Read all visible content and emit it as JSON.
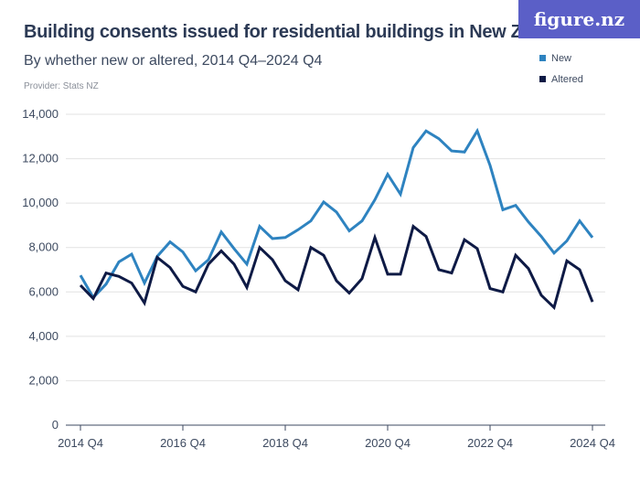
{
  "header": {
    "title": "Building consents issued for residential buildings in New Zealand",
    "subtitle": "By whether new or altered, 2014 Q4–2024 Q4",
    "provider": "Provider: Stats NZ",
    "logo": "figure.nz"
  },
  "chart_data": {
    "type": "line",
    "title": "Building consents issued for residential buildings in New Zealand",
    "subtitle": "By whether new or altered, 2014 Q4–2024 Q4",
    "x_start": "2014 Q4",
    "x_end": "2024 Q4",
    "x_ticks": [
      "2014 Q4",
      "2016 Q4",
      "2018 Q4",
      "2020 Q4",
      "2022 Q4",
      "2024 Q4"
    ],
    "y_ticks": [
      "0",
      "2,000",
      "4,000",
      "6,000",
      "8,000",
      "10,000",
      "12,000",
      "14,000"
    ],
    "ylim": [
      0,
      14000
    ],
    "grid": true,
    "legend_placement": "top-right",
    "series": [
      {
        "name": "New",
        "color": "#2e83c0",
        "values": [
          6750,
          5750,
          6350,
          7350,
          7700,
          6400,
          7600,
          8250,
          7800,
          6950,
          7450,
          8700,
          7950,
          7250,
          8950,
          8400,
          8450,
          8800,
          9200,
          10050,
          9600,
          8750,
          9200,
          10150,
          11300,
          10400,
          12500,
          13250,
          12900,
          12350,
          12300,
          13250,
          11700,
          9700,
          9900,
          9150,
          8500,
          7750,
          8300,
          9200,
          8450
        ]
      },
      {
        "name": "Altered",
        "color": "#0e1a45",
        "values": [
          6300,
          5700,
          6850,
          6700,
          6400,
          5500,
          7550,
          7100,
          6250,
          6000,
          7250,
          7850,
          7250,
          6200,
          8000,
          7450,
          6500,
          6100,
          8000,
          7650,
          6500,
          5950,
          6600,
          8450,
          6800,
          6800,
          8950,
          8500,
          7000,
          6850,
          8350,
          7950,
          6150,
          6000,
          7650,
          7050,
          5850,
          5300,
          7400,
          7000,
          5550
        ]
      }
    ]
  }
}
